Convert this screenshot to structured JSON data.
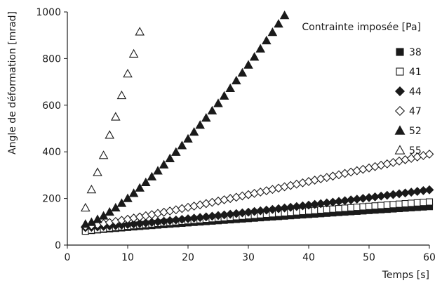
{
  "chart_data": {
    "type": "scatter",
    "xlabel": "Temps [s]",
    "ylabel": "Angle de déformation [mrad]",
    "xlim": [
      0,
      60
    ],
    "ylim": [
      0,
      1000
    ],
    "x_ticks": [
      "0",
      "10",
      "20",
      "30",
      "40",
      "50",
      "60"
    ],
    "y_ticks": [
      "0",
      "200",
      "400",
      "600",
      "800",
      "1000"
    ],
    "grid": false,
    "legend": {
      "title": "Contrainte imposée [Pa]",
      "placement": "right"
    },
    "series": [
      {
        "name": "38",
        "marker": "square",
        "filled": true,
        "x_start": 3,
        "x_step": 1,
        "count": 58,
        "y_start": 60,
        "y_end": 165,
        "curve": 0.9
      },
      {
        "name": "41",
        "marker": "square",
        "filled": false,
        "x_start": 3,
        "x_step": 1,
        "count": 58,
        "y_start": 60,
        "y_end": 185,
        "curve": 0.85
      },
      {
        "name": "44",
        "marker": "diamond",
        "filled": true,
        "x_start": 3,
        "x_step": 1,
        "count": 58,
        "y_start": 75,
        "y_end": 237,
        "curve": 1.2
      },
      {
        "name": "47",
        "marker": "diamond",
        "filled": false,
        "x_start": 3,
        "x_step": 1,
        "count": 58,
        "y_start": 80,
        "y_end": 390,
        "curve": 1.1
      },
      {
        "name": "52",
        "marker": "triangle",
        "filled": true,
        "x_start": 3,
        "x_step": 1,
        "count": 34,
        "y_start": 90,
        "y_end": 985,
        "curve": 1.35
      },
      {
        "name": "55",
        "marker": "triangle",
        "filled": false,
        "x": [
          3,
          4,
          5,
          6,
          7,
          8,
          9,
          10,
          11,
          12
        ],
        "y": [
          160,
          238,
          312,
          385,
          472,
          550,
          642,
          735,
          820,
          915
        ]
      }
    ]
  },
  "colors": {
    "marker": "#1a1a1a",
    "axis": "#1a1a1a",
    "background": "#ffffff"
  }
}
